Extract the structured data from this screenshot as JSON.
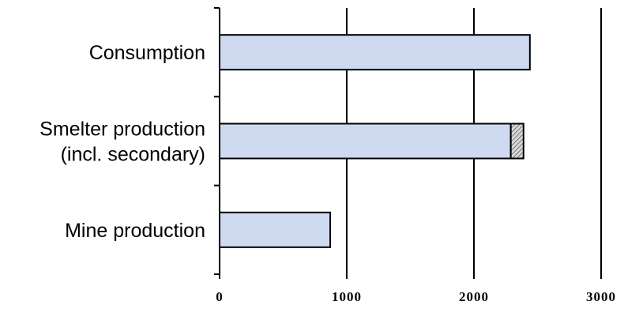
{
  "chart_data": {
    "type": "bar",
    "orientation": "horizontal",
    "stacked": true,
    "categories": [
      [
        "Consumption"
      ],
      [
        "Smelter production",
        "(incl. secondary)"
      ],
      [
        "Mine production"
      ]
    ],
    "series": [
      {
        "values": [
          2440,
          2290,
          870
        ],
        "color": "#cfdaf0",
        "pattern": "solid"
      },
      {
        "values": [
          0,
          100,
          0
        ],
        "color": "#c8c8c8",
        "pattern": "hatched"
      }
    ],
    "xlim": [
      0,
      3000
    ],
    "xticks": [
      "0",
      "1000",
      "2000",
      "3000"
    ],
    "grid": "vertical",
    "legend": "none",
    "title": "",
    "xlabel": "",
    "ylabel": ""
  }
}
